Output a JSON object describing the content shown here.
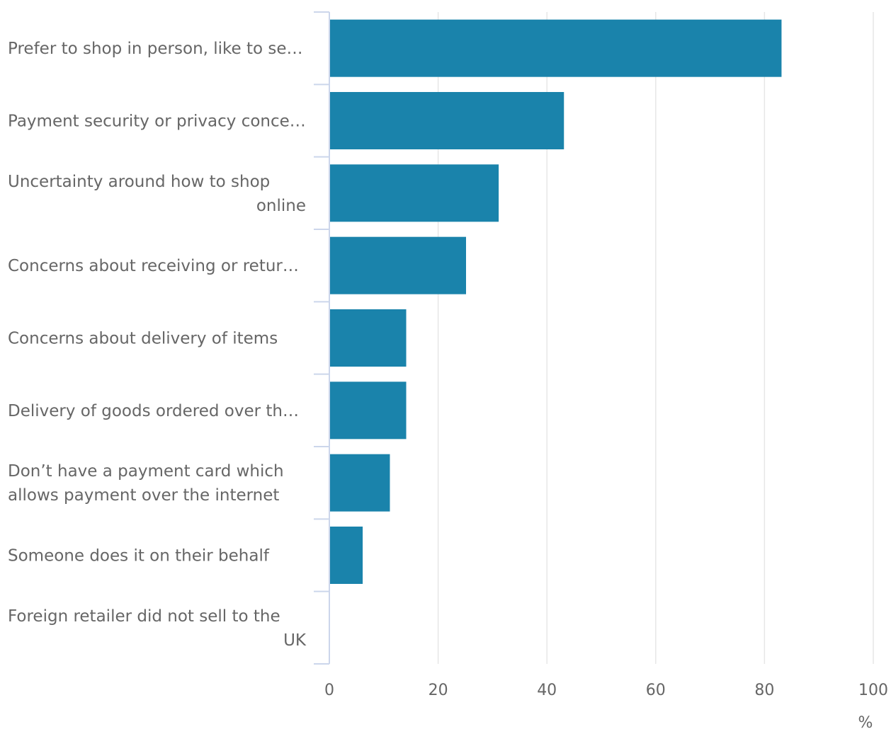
{
  "chart_data": {
    "type": "bar",
    "orientation": "horizontal",
    "categories": [
      [
        "Prefer to shop in person, like to se…"
      ],
      [
        "Payment security or privacy conce…"
      ],
      [
        "Uncertainty around how to shop",
        "online"
      ],
      [
        "Concerns about receiving or retur…"
      ],
      [
        "Concerns about delivery of items"
      ],
      [
        "Delivery of goods ordered over th…"
      ],
      [
        "Don’t have a payment card which",
        "allows payment over the internet"
      ],
      [
        "Someone does it on their behalf"
      ],
      [
        "Foreign retailer did not sell to the",
        "UK"
      ]
    ],
    "values": [
      83,
      43,
      31,
      25,
      14,
      14,
      11,
      6,
      0
    ],
    "xlabel": "%",
    "xlim": [
      0,
      100
    ],
    "xticks": [
      0,
      20,
      40,
      60,
      80,
      100
    ],
    "grid": true,
    "bar_color": "#1a83ab",
    "grid_color": "#e6e6e6",
    "axis_color": "#ccd6eb"
  }
}
